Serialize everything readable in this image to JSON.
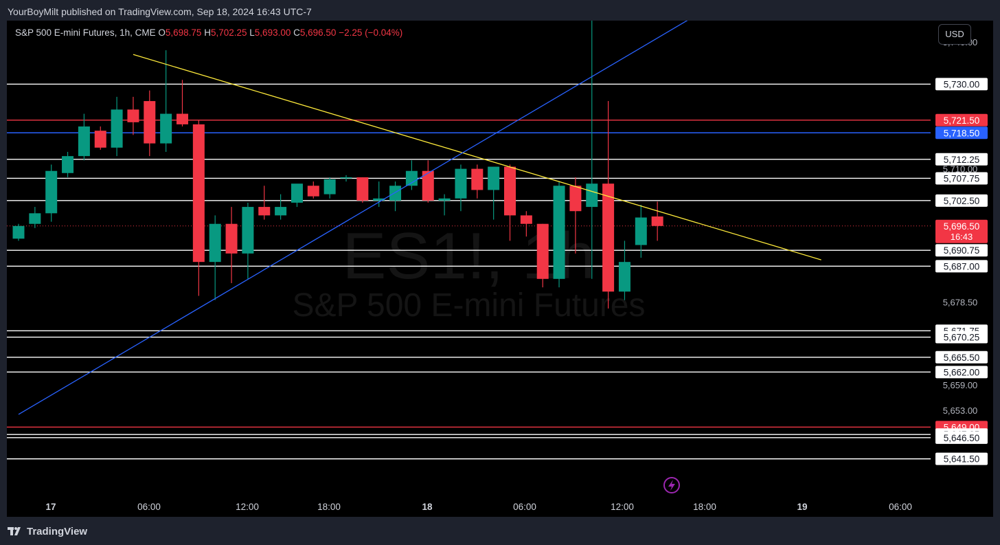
{
  "header": {
    "published_text": "YourBoyMilt published on TradingView.com, Sep 18, 2024 16:43 UTC-7"
  },
  "legend": {
    "symbol": "S&P 500 E-mini Futures, 1h, CME",
    "o_label": "O",
    "o_value": "5,698.75",
    "h_label": "H",
    "h_value": "5,702.25",
    "l_label": "L",
    "l_value": "5,693.00",
    "c_label": "C",
    "c_value": "5,696.50",
    "change": "−2.25 (−0.04%)"
  },
  "currency_button": "USD",
  "watermark": {
    "ticker": "ES1!, 1h",
    "name": "S&P 500 E-mini Futures"
  },
  "footer": {
    "brand": "TradingView"
  },
  "colors": {
    "up": "#089981",
    "down": "#f23645",
    "white_level": "#ffffff",
    "red_level": "#f23645",
    "blue_level": "#2962ff",
    "trend_yellow": "#ffeb3b",
    "trend_blue": "#2962ff",
    "background": "#000000"
  },
  "chart_data": {
    "type": "candlestick",
    "timeframe": "1h",
    "price_range": [
      5633,
      5745
    ],
    "x_ticks": [
      "17",
      "06:00",
      "12:00",
      "18:00",
      "18",
      "06:00",
      "12:00",
      "18:00",
      "19",
      "06:00"
    ],
    "price_scale_labels": [
      "5,740.00",
      "5,710.00",
      "5,678.50",
      "5,659.00",
      "5,653.00"
    ],
    "candles": [
      {
        "o": 5693.5,
        "h": 5697,
        "l": 5693,
        "c": 5696.5
      },
      {
        "o": 5697,
        "h": 5701,
        "l": 5696,
        "c": 5699.5
      },
      {
        "o": 5699.5,
        "h": 5711,
        "l": 5697.5,
        "c": 5709.5
      },
      {
        "o": 5709,
        "h": 5714,
        "l": 5708,
        "c": 5713
      },
      {
        "o": 5713,
        "h": 5723,
        "l": 5712,
        "c": 5720
      },
      {
        "o": 5719,
        "h": 5720,
        "l": 5714.5,
        "c": 5715
      },
      {
        "o": 5715,
        "h": 5727,
        "l": 5713,
        "c": 5724
      },
      {
        "o": 5724,
        "h": 5727,
        "l": 5718,
        "c": 5721
      },
      {
        "o": 5726,
        "h": 5728.5,
        "l": 5713,
        "c": 5716
      },
      {
        "o": 5716,
        "h": 5738,
        "l": 5714,
        "c": 5723
      },
      {
        "o": 5723,
        "h": 5731,
        "l": 5720,
        "c": 5720.5
      },
      {
        "o": 5720.5,
        "h": 5721.5,
        "l": 5680,
        "c": 5688
      },
      {
        "o": 5688,
        "h": 5699,
        "l": 5679,
        "c": 5697
      },
      {
        "o": 5697,
        "h": 5701,
        "l": 5683,
        "c": 5690
      },
      {
        "o": 5690,
        "h": 5702,
        "l": 5684,
        "c": 5701
      },
      {
        "o": 5701,
        "h": 5706,
        "l": 5698,
        "c": 5699
      },
      {
        "o": 5699,
        "h": 5704,
        "l": 5698,
        "c": 5701
      },
      {
        "o": 5702,
        "h": 5706,
        "l": 5701,
        "c": 5706.5
      },
      {
        "o": 5706,
        "h": 5707,
        "l": 5703,
        "c": 5703.5
      },
      {
        "o": 5704,
        "h": 5708,
        "l": 5703,
        "c": 5707.5
      },
      {
        "o": 5708,
        "h": 5708.5,
        "l": 5707,
        "c": 5708
      },
      {
        "o": 5708,
        "h": 5708,
        "l": 5702,
        "c": 5702.5
      },
      {
        "o": 5702.5,
        "h": 5707,
        "l": 5701,
        "c": 5703
      },
      {
        "o": 5702.5,
        "h": 5707,
        "l": 5700,
        "c": 5706
      },
      {
        "o": 5706,
        "h": 5712,
        "l": 5705,
        "c": 5709.5
      },
      {
        "o": 5709.5,
        "h": 5712,
        "l": 5702,
        "c": 5702.5
      },
      {
        "o": 5702.5,
        "h": 5704,
        "l": 5699,
        "c": 5703
      },
      {
        "o": 5703,
        "h": 5711,
        "l": 5700,
        "c": 5710
      },
      {
        "o": 5710,
        "h": 5711,
        "l": 5703,
        "c": 5705
      },
      {
        "o": 5705,
        "h": 5710,
        "l": 5698,
        "c": 5710.5
      },
      {
        "o": 5710.5,
        "h": 5711,
        "l": 5693,
        "c": 5699
      },
      {
        "o": 5699,
        "h": 5700,
        "l": 5694,
        "c": 5697
      },
      {
        "o": 5697,
        "h": 5697,
        "l": 5682,
        "c": 5684
      },
      {
        "o": 5684,
        "h": 5707,
        "l": 5682,
        "c": 5706
      },
      {
        "o": 5706,
        "h": 5708,
        "l": 5690,
        "c": 5700
      },
      {
        "o": 5701,
        "h": 5749,
        "l": 5684,
        "c": 5706.5
      },
      {
        "o": 5706.5,
        "h": 5726,
        "l": 5677,
        "c": 5681
      },
      {
        "o": 5681,
        "h": 5693,
        "l": 5679,
        "c": 5688
      },
      {
        "o": 5692,
        "h": 5701.5,
        "l": 5689,
        "c": 5698.5
      },
      {
        "o": 5698.75,
        "h": 5702.25,
        "l": 5693,
        "c": 5696.5
      }
    ],
    "levels": [
      {
        "price": 5730.0,
        "label": "5,730.00",
        "color": "white"
      },
      {
        "price": 5721.5,
        "label": "5,721.50",
        "color": "red"
      },
      {
        "price": 5718.5,
        "label": "5,718.50",
        "color": "blue"
      },
      {
        "price": 5712.25,
        "label": "5,712.25",
        "color": "white"
      },
      {
        "price": 5707.75,
        "label": "5,707.75",
        "color": "white"
      },
      {
        "price": 5702.5,
        "label": "5,702.50",
        "color": "white"
      },
      {
        "price": 5690.75,
        "label": "5,690.75",
        "color": "white"
      },
      {
        "price": 5687.0,
        "label": "5,687.00",
        "color": "white"
      },
      {
        "price": 5671.75,
        "label": "5,671.75",
        "color": "white"
      },
      {
        "price": 5670.25,
        "label": "5,670.25",
        "color": "white"
      },
      {
        "price": 5665.5,
        "label": "5,665.50",
        "color": "white"
      },
      {
        "price": 5662.0,
        "label": "5,662.00",
        "color": "white"
      },
      {
        "price": 5649.0,
        "label": "5,649.00",
        "color": "red"
      },
      {
        "price": 5647.25,
        "label": "5,647.25",
        "color": "white"
      },
      {
        "price": 5646.5,
        "label": "5,646.50",
        "color": "white"
      },
      {
        "price": 5641.5,
        "label": "5,641.50",
        "color": "white"
      }
    ],
    "last_price": {
      "price": 5696.5,
      "label": "5,696.50",
      "countdown": "16:43"
    },
    "trendlines": [
      {
        "color": "yellow",
        "from": {
          "candle": 7,
          "price": 5737
        },
        "to": {
          "candle": 49,
          "price": 5688.5
        }
      },
      {
        "color": "blue",
        "from": {
          "candle": 0,
          "price": 5652
        },
        "to": {
          "candle": 43,
          "price": 5750
        }
      }
    ]
  }
}
